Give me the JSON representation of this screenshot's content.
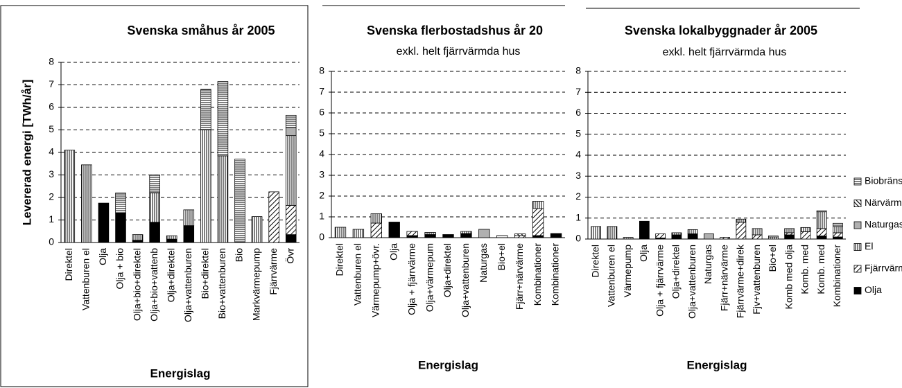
{
  "chart_data": [
    {
      "type": "bar",
      "stacked": true,
      "title": "Svenska småhus år 2005",
      "ylabel": "Levererad energi [TWh/år]",
      "xlabel": "Energislag",
      "categories": [
        "Direktel",
        "Vattenburen el",
        "Olja",
        "Olja + bio",
        "Olja+bio+direktel",
        "Olja+bio+vattenb",
        "Olja+direktel",
        "Olja+vattenburen",
        "Bio+direktel",
        "Bio+vattenburen",
        "Bio",
        "Markvärmepump",
        "Fjärrvärme",
        "Övr"
      ],
      "series": [
        {
          "name": "Biobränsle",
          "color": "#ffffff",
          "pattern": "horizontal",
          "values": [
            0,
            0,
            0,
            0.9,
            0,
            0.8,
            0,
            0,
            1.8,
            3.3,
            3.7,
            0,
            0,
            0.55
          ]
        },
        {
          "name": "Närvärme",
          "color": "#ffffff",
          "pattern": "backdiagonal",
          "values": [
            0,
            0,
            0,
            0,
            0,
            0,
            0,
            0,
            0,
            0,
            0,
            0,
            0,
            0
          ]
        },
        {
          "name": "Naturgas",
          "color": "#b0b0b0",
          "values": [
            0,
            0,
            0,
            0,
            0,
            0,
            0,
            0,
            0,
            0,
            0,
            0,
            0,
            0.35
          ]
        },
        {
          "name": "El",
          "color": "#ffffff",
          "pattern": "vertical",
          "values": [
            4.1,
            3.45,
            0,
            0,
            0.25,
            1.3,
            0.15,
            0.7,
            5.0,
            3.85,
            0,
            1.15,
            0,
            3.1
          ]
        },
        {
          "name": "Fjärrvärme",
          "color": "#ffffff",
          "pattern": "diagonal",
          "values": [
            0,
            0,
            0,
            0,
            0,
            0,
            0,
            0,
            0,
            0,
            0,
            0,
            2.25,
            1.3
          ]
        },
        {
          "name": "Olja",
          "color": "#000000",
          "values": [
            0,
            0,
            1.75,
            1.3,
            0.1,
            0.9,
            0.15,
            0.75,
            0,
            0,
            0,
            0,
            0,
            0.35
          ]
        }
      ],
      "ylim": [
        0,
        8
      ],
      "yticks": [
        0,
        1,
        2,
        3,
        4,
        5,
        6,
        7,
        8
      ],
      "grid": true,
      "legend": "none"
    },
    {
      "type": "bar",
      "stacked": true,
      "title": "Svenska flerbostadshus år 20",
      "subtitle": "exkl. helt fjärrvärmda hus",
      "xlabel": "Energislag",
      "categories": [
        "Direktel",
        "Vattenburen el",
        "Värmepump+övr.",
        "Olja",
        "Olja + fjärrvärme",
        "Olja+värmepum",
        "Olja+direktel",
        "Olja+vattenburen",
        "Naturgas",
        "Bio+el",
        "Fjärr+närvärme",
        "Kombinationer",
        "Kombinationer"
      ],
      "series": [
        {
          "name": "Biobränsle",
          "color": "#ffffff",
          "pattern": "horizontal",
          "values": [
            0,
            0,
            0,
            0,
            0,
            0,
            0,
            0,
            0,
            0.1,
            0,
            0,
            0
          ]
        },
        {
          "name": "Närvärme",
          "color": "#ffffff",
          "pattern": "backdiagonal",
          "values": [
            0,
            0,
            0,
            0,
            0,
            0,
            0,
            0,
            0,
            0,
            0.08,
            0,
            0
          ]
        },
        {
          "name": "Naturgas",
          "color": "#b0b0b0",
          "values": [
            0,
            0,
            0,
            0,
            0,
            0,
            0,
            0,
            0.4,
            0,
            0,
            0,
            0
          ]
        },
        {
          "name": "El",
          "color": "#ffffff",
          "pattern": "vertical",
          "values": [
            0.5,
            0.4,
            0.45,
            0,
            0,
            0.1,
            0,
            0.1,
            0,
            0,
            0,
            0.35,
            0
          ]
        },
        {
          "name": "Fjärrvärme",
          "color": "#ffffff",
          "pattern": "diagonal",
          "values": [
            0,
            0,
            0.7,
            0,
            0.2,
            0,
            0,
            0,
            0,
            0,
            0.1,
            1.3,
            0
          ]
        },
        {
          "name": "Olja",
          "color": "#000000",
          "values": [
            0,
            0,
            0,
            0.75,
            0.1,
            0.15,
            0.15,
            0.2,
            0,
            0,
            0,
            0.1,
            0.2
          ]
        }
      ],
      "ylim": [
        0,
        8
      ],
      "yticks": [
        0,
        1,
        2,
        3,
        4,
        5,
        6,
        7,
        8
      ],
      "grid": true,
      "legend": "none"
    },
    {
      "type": "bar",
      "stacked": true,
      "title": "Svenska lokalbyggnader år 2005",
      "subtitle": "exkl. helt fjärrvärmda hus",
      "xlabel": "Energislag",
      "categories": [
        "Direktel",
        "Vattenburen el",
        "Värmepump",
        "Olja",
        "Olja + fjärrvärme",
        "Olja+direktel",
        "Olja+vattenburen",
        "Naturgas",
        "Fjärr+närvärme",
        "Fjärrvärme+direk",
        "Fjv+vattenburen",
        "Bio+el",
        "Komb med olja",
        "Komb. med",
        "Komb. med",
        "Kombinationer"
      ],
      "series": [
        {
          "name": "Biobränsle",
          "color": "#ffffff",
          "pattern": "horizontal",
          "values": [
            0,
            0,
            0,
            0,
            0,
            0,
            0,
            0,
            0,
            0,
            0,
            0.05,
            0,
            0,
            0.05,
            0.15
          ]
        },
        {
          "name": "Närvärme",
          "color": "#ffffff",
          "pattern": "backdiagonal",
          "values": [
            0,
            0,
            0,
            0,
            0,
            0,
            0,
            0,
            0,
            0,
            0,
            0,
            0,
            0,
            0,
            0
          ]
        },
        {
          "name": "Naturgas",
          "color": "#b0b0b0",
          "values": [
            0,
            0,
            0,
            0,
            0,
            0,
            0,
            0.25,
            0,
            0,
            0,
            0,
            0,
            0,
            0,
            0
          ]
        },
        {
          "name": "El",
          "color": "#ffffff",
          "pattern": "vertical",
          "values": [
            0.6,
            0.6,
            0.08,
            0,
            0,
            0.1,
            0.2,
            0,
            0,
            0.15,
            0.3,
            0.1,
            0.2,
            0.2,
            0.8,
            0.3
          ]
        },
        {
          "name": "Fjärrvärme",
          "color": "#ffffff",
          "pattern": "diagonal",
          "values": [
            0,
            0,
            0,
            0,
            0.2,
            0,
            0,
            0,
            0.08,
            0.8,
            0.2,
            0,
            0.1,
            0.35,
            0.35,
            0.2
          ]
        },
        {
          "name": "Olja",
          "color": "#000000",
          "values": [
            0,
            0,
            0,
            0.85,
            0.05,
            0.2,
            0.25,
            0,
            0,
            0,
            0,
            0,
            0.2,
            0,
            0.15,
            0.1
          ]
        }
      ],
      "ylim": [
        0,
        8
      ],
      "yticks": [
        0,
        1,
        2,
        3,
        4,
        5,
        6,
        7,
        8
      ],
      "grid": true,
      "legend": "right"
    }
  ]
}
